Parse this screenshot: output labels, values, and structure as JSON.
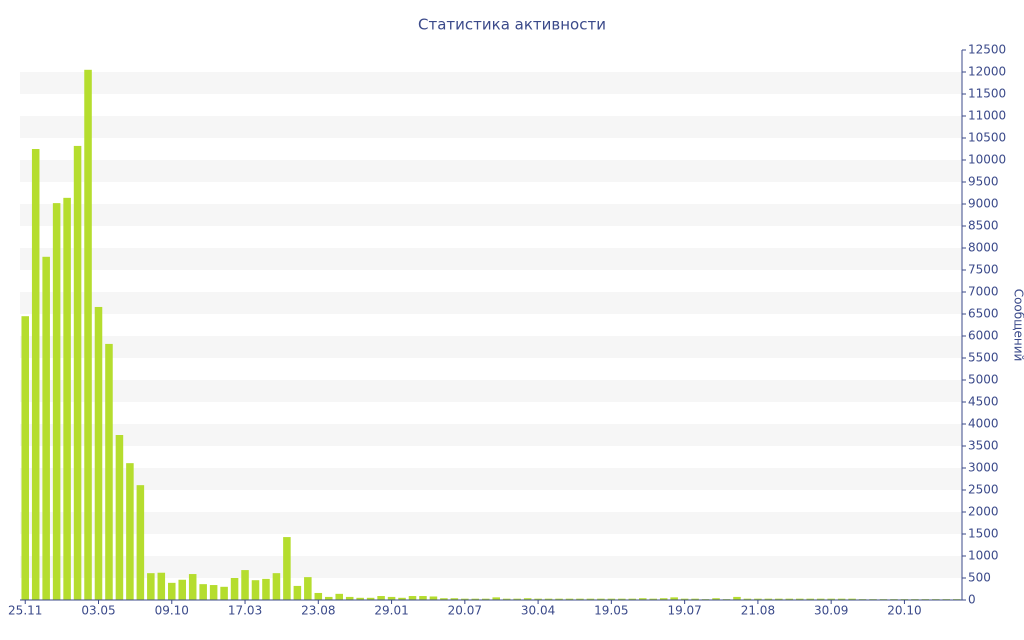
{
  "chart_data": {
    "type": "bar",
    "title": "Статистика активности",
    "y_axis_label": "Сообщений",
    "categories": [
      "25.11",
      null,
      null,
      null,
      null,
      null,
      null,
      "03.05",
      null,
      null,
      null,
      null,
      null,
      null,
      "09.10",
      null,
      null,
      null,
      null,
      null,
      null,
      "17.03",
      null,
      null,
      null,
      null,
      null,
      null,
      "23.08",
      null,
      null,
      null,
      null,
      null,
      null,
      "29.01",
      null,
      null,
      null,
      null,
      null,
      null,
      "20.07",
      null,
      null,
      null,
      null,
      null,
      null,
      "30.04",
      null,
      null,
      null,
      null,
      null,
      null,
      "19.05",
      null,
      null,
      null,
      null,
      null,
      null,
      "19.07",
      null,
      null,
      null,
      null,
      null,
      null,
      "21.08",
      null,
      null,
      null,
      null,
      null,
      null,
      "30.09",
      null,
      null,
      null,
      null,
      null,
      null,
      "20.10",
      null,
      null,
      null,
      null,
      null
    ],
    "values": [
      6450,
      10250,
      7800,
      9020,
      9140,
      10320,
      12050,
      6660,
      5820,
      3750,
      3110,
      2610,
      610,
      620,
      390,
      460,
      590,
      360,
      340,
      300,
      500,
      680,
      450,
      480,
      610,
      1430,
      320,
      520,
      160,
      70,
      140,
      70,
      50,
      50,
      90,
      70,
      50,
      90,
      90,
      80,
      40,
      40,
      30,
      30,
      30,
      60,
      30,
      30,
      40,
      30,
      30,
      30,
      30,
      30,
      30,
      30,
      30,
      30,
      30,
      40,
      30,
      40,
      60,
      30,
      30,
      20,
      40,
      20,
      70,
      30,
      30,
      30,
      30,
      30,
      30,
      30,
      30,
      30,
      30,
      30,
      20,
      20,
      20,
      20,
      20,
      20,
      20,
      20,
      20,
      20
    ],
    "color": "#b5dd2e",
    "ylim": [
      0,
      12500
    ],
    "yticks": [
      0,
      500,
      1000,
      1500,
      2000,
      2500,
      3000,
      3500,
      4000,
      4500,
      5000,
      5500,
      6000,
      6500,
      7000,
      7500,
      8000,
      8500,
      9000,
      9500,
      10000,
      10500,
      11000,
      11500,
      12000,
      12500
    ],
    "grid": true,
    "y_axis_side": "right"
  }
}
